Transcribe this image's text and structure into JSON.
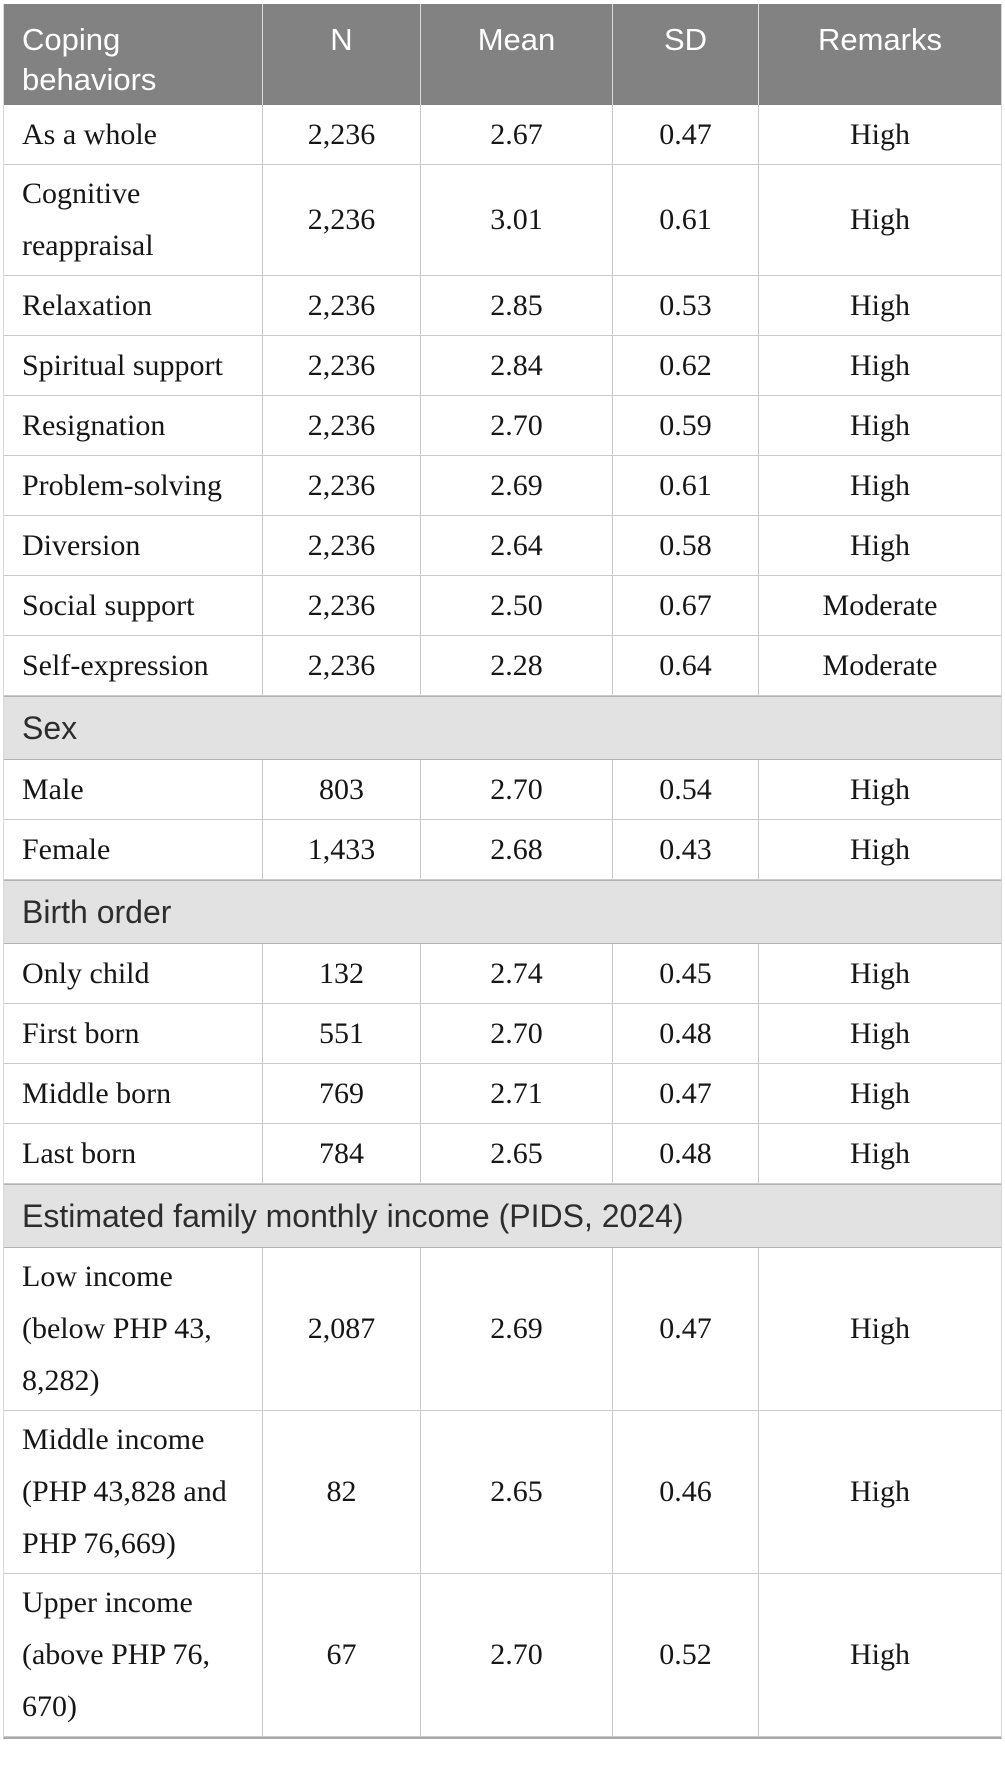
{
  "colors": {
    "header_bg": "#828282",
    "header_text": "#ffffff",
    "section_bg": "#e2e2e2",
    "body_text": "#161616",
    "grid_border": "#c9c9c9",
    "section_border": "#b3b3b3"
  },
  "chart_data": {
    "type": "table",
    "columns": [
      "Coping behaviors",
      "N",
      "Mean",
      "SD",
      "Remarks"
    ],
    "rows": [
      {
        "type": "data",
        "label": "As a whole",
        "n": "2,236",
        "mean": "2.67",
        "sd": "0.47",
        "remarks": "High"
      },
      {
        "type": "data",
        "label": "Cognitive\nreappraisal",
        "n": "2,236",
        "mean": "3.01",
        "sd": "0.61",
        "remarks": "High"
      },
      {
        "type": "data",
        "label": "Relaxation",
        "n": "2,236",
        "mean": "2.85",
        "sd": "0.53",
        "remarks": "High"
      },
      {
        "type": "data",
        "label": "Spiritual support",
        "n": "2,236",
        "mean": "2.84",
        "sd": "0.62",
        "remarks": "High"
      },
      {
        "type": "data",
        "label": "Resignation",
        "n": "2,236",
        "mean": "2.70",
        "sd": "0.59",
        "remarks": "High"
      },
      {
        "type": "data",
        "label": "Problem-solving",
        "n": "2,236",
        "mean": "2.69",
        "sd": "0.61",
        "remarks": "High"
      },
      {
        "type": "data",
        "label": "Diversion",
        "n": "2,236",
        "mean": "2.64",
        "sd": "0.58",
        "remarks": "High"
      },
      {
        "type": "data",
        "label": "Social support",
        "n": "2,236",
        "mean": "2.50",
        "sd": "0.67",
        "remarks": "Moderate"
      },
      {
        "type": "data",
        "label": "Self-expression",
        "n": "2,236",
        "mean": "2.28",
        "sd": "0.64",
        "remarks": "Moderate"
      },
      {
        "type": "section",
        "label": "Sex"
      },
      {
        "type": "data",
        "label": "Male",
        "n": "803",
        "mean": "2.70",
        "sd": "0.54",
        "remarks": "High"
      },
      {
        "type": "data",
        "label": "Female",
        "n": "1,433",
        "mean": "2.68",
        "sd": "0.43",
        "remarks": "High"
      },
      {
        "type": "section",
        "label": "Birth order"
      },
      {
        "type": "data",
        "label": "Only child",
        "n": "132",
        "mean": "2.74",
        "sd": "0.45",
        "remarks": "High"
      },
      {
        "type": "data",
        "label": "First born",
        "n": "551",
        "mean": "2.70",
        "sd": "0.48",
        "remarks": "High"
      },
      {
        "type": "data",
        "label": "Middle born",
        "n": "769",
        "mean": "2.71",
        "sd": "0.47",
        "remarks": "High"
      },
      {
        "type": "data",
        "label": "Last born",
        "n": "784",
        "mean": "2.65",
        "sd": "0.48",
        "remarks": "High"
      },
      {
        "type": "section",
        "label": "Estimated family monthly income (PIDS, 2024)"
      },
      {
        "type": "data",
        "label": "Low income\n(below PHP 43,\n8,282)",
        "n": "2,087",
        "mean": "2.69",
        "sd": "0.47",
        "remarks": "High"
      },
      {
        "type": "data",
        "label": "Middle income\n(PHP 43,828 and\nPHP 76,669)",
        "n": "82",
        "mean": "2.65",
        "sd": "0.46",
        "remarks": "High"
      },
      {
        "type": "data",
        "label": "Upper income\n(above PHP 76,\n670)",
        "n": "67",
        "mean": "2.70",
        "sd": "0.52",
        "remarks": "High"
      }
    ]
  }
}
